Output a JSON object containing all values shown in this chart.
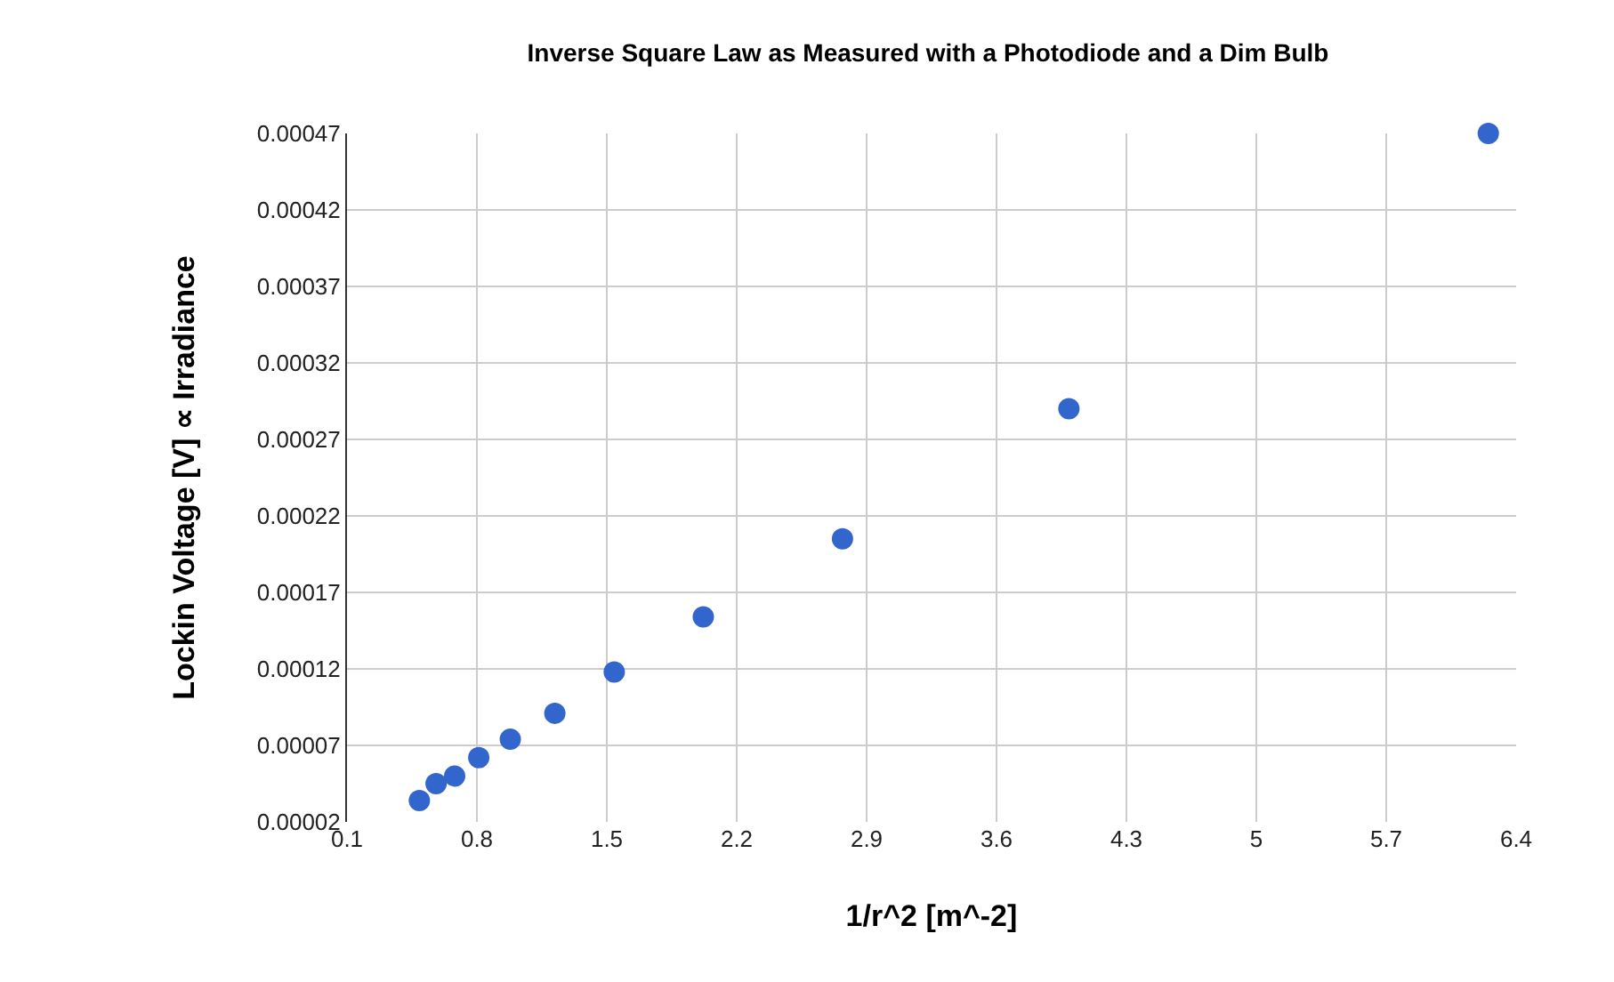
{
  "chart_data": {
    "type": "scatter",
    "title": "Inverse Square Law as Measured with a Photodiode and a Dim Bulb",
    "xlabel": "1/r^2 [m^-2]",
    "ylabel": "Lockin Voltage [V] ∝ Irradiance",
    "x": [
      0.49,
      0.58,
      0.68,
      0.81,
      0.98,
      1.22,
      1.54,
      2.02,
      2.77,
      3.99,
      6.25
    ],
    "series": [
      {
        "color": "#3366cc",
        "values": [
          3.4e-05,
          4.5e-05,
          5e-05,
          6.2e-05,
          7.4e-05,
          9.1e-05,
          0.000118,
          0.000154,
          0.000205,
          0.00029,
          0.00047
        ]
      }
    ],
    "xlim": [
      0.1,
      6.4
    ],
    "xticks": [
      0.1,
      0.8,
      1.5,
      2.2,
      2.9,
      3.6,
      4.3,
      5,
      5.7,
      6.4
    ],
    "ylim": [
      2e-05,
      0.00047
    ],
    "yticks": [
      {
        "value": 2e-05,
        "label": "0.00002"
      },
      {
        "value": 7e-05,
        "label": "0.00007"
      },
      {
        "value": 0.00012,
        "label": "0.00012"
      },
      {
        "value": 0.00017,
        "label": "0.00017"
      },
      {
        "value": 0.00022,
        "label": "0.00022"
      },
      {
        "value": 0.00027,
        "label": "0.00027"
      },
      {
        "value": 0.00032,
        "label": "0.00032"
      },
      {
        "value": 0.00037,
        "label": "0.00037"
      },
      {
        "value": 0.00042,
        "label": "0.00042"
      },
      {
        "value": 0.00047,
        "label": "0.00047"
      }
    ],
    "grid": true,
    "marker": "circle",
    "legend": false
  }
}
